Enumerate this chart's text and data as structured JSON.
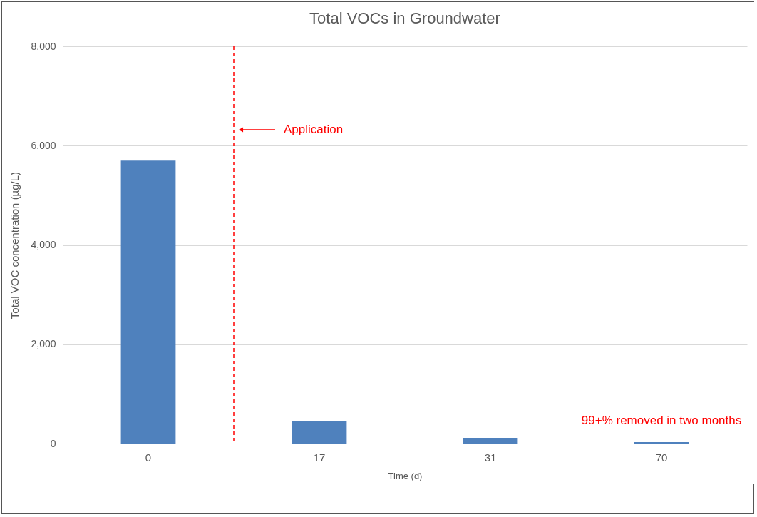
{
  "chart_data": {
    "type": "bar",
    "title": "Total VOCs in Groundwater",
    "xlabel": "Time (d)",
    "ylabel": "Total VOC concentration (µg/L)",
    "categories": [
      "0",
      "17",
      "31",
      "70"
    ],
    "values": [
      5700,
      460,
      115,
      30
    ],
    "color": "#4f81bd",
    "ylim": [
      0,
      8000
    ],
    "yticks": [
      {
        "value": 0,
        "label": "0"
      },
      {
        "value": 2000,
        "label": "2,000"
      },
      {
        "value": 4000,
        "label": "4,000"
      },
      {
        "value": 6000,
        "label": "6,000"
      },
      {
        "value": 8000,
        "label": "8,000"
      }
    ],
    "grid": "y",
    "ref_lines": [
      {
        "axis": "x",
        "value": "0",
        "label": "Application",
        "color": "#ff0000",
        "line_style": "dashed"
      }
    ],
    "annotations": [
      {
        "text": "99+% removed in two months",
        "x": "70",
        "y": 30
      }
    ]
  }
}
